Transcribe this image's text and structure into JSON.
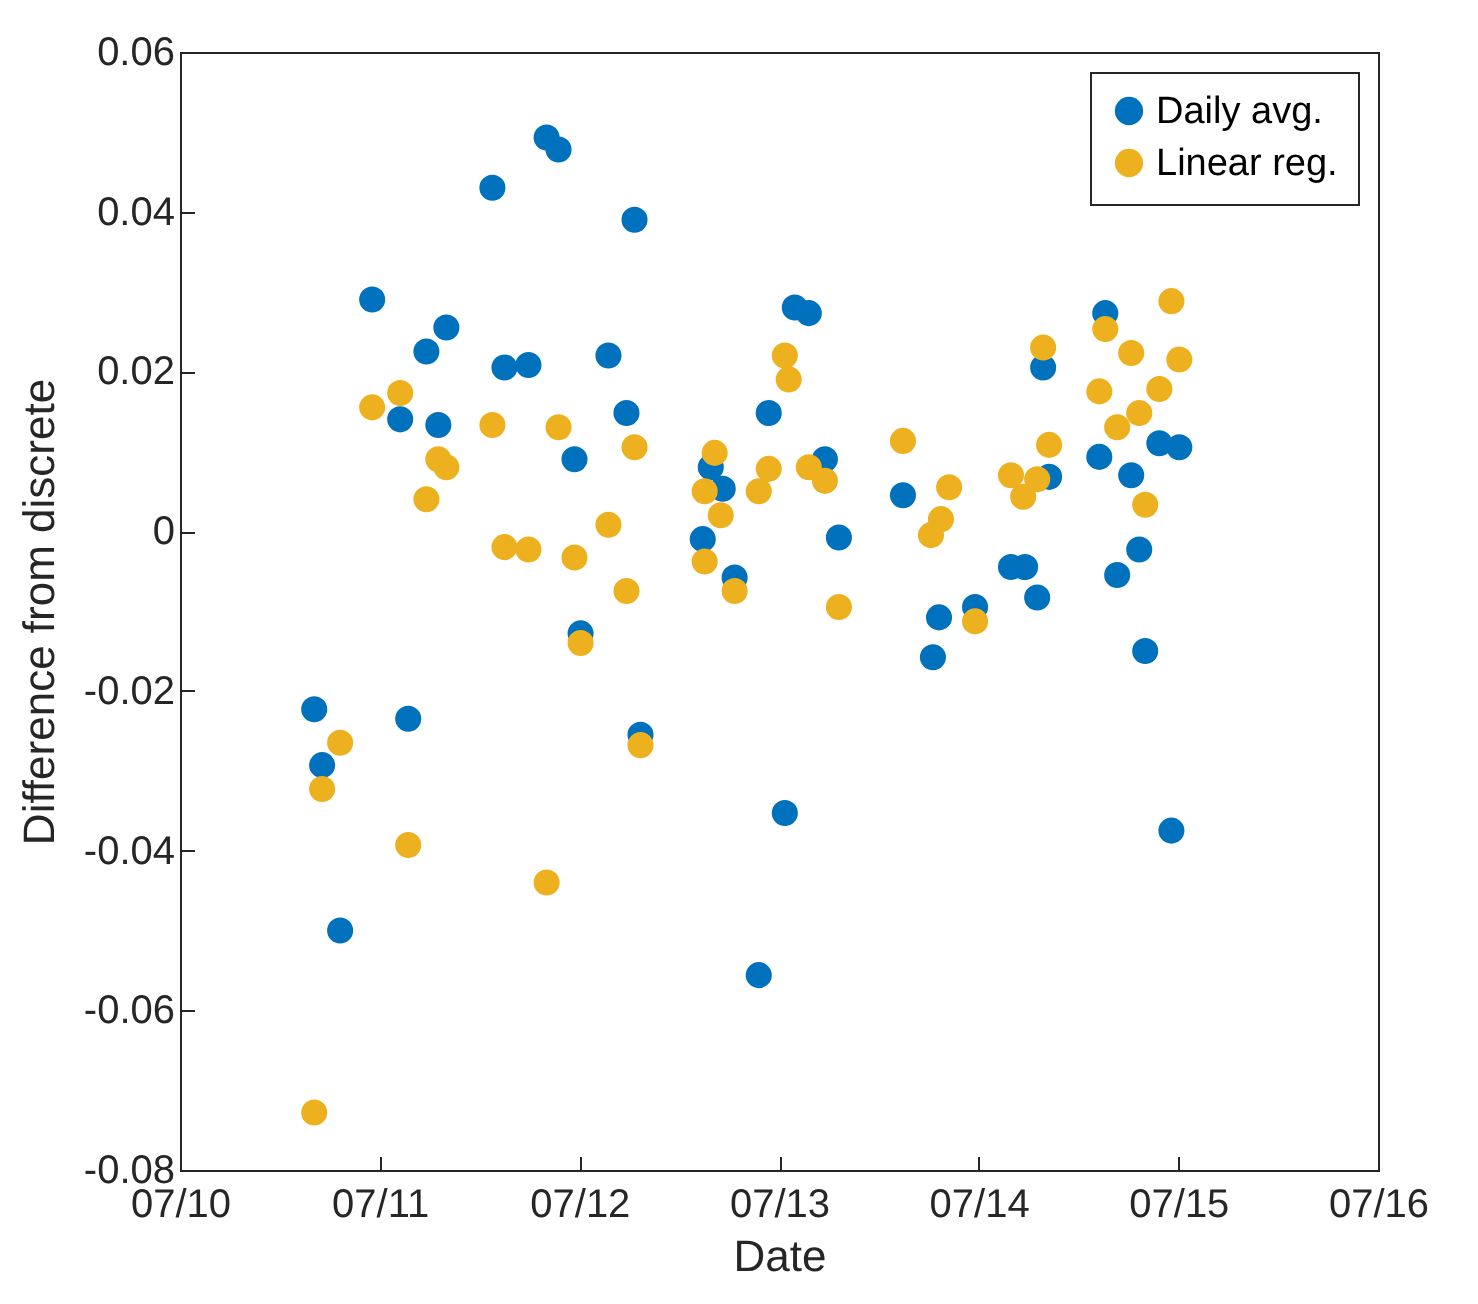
{
  "chart_data": {
    "type": "scatter",
    "xlabel": "Date",
    "ylabel": "Difference from discrete",
    "xlim": [
      "--07-10",
      "--07-16"
    ],
    "xticks": [
      {
        "value": "--07-10",
        "label": "07/10"
      },
      {
        "value": "--07-11",
        "label": "07/11"
      },
      {
        "value": "--07-12",
        "label": "07/12"
      },
      {
        "value": "--07-13",
        "label": "07/13"
      },
      {
        "value": "--07-14",
        "label": "07/14"
      },
      {
        "value": "--07-15",
        "label": "07/15"
      },
      {
        "value": "--07-16",
        "label": "07/16"
      }
    ],
    "ylim": [
      -0.08,
      0.06
    ],
    "yticks": [
      {
        "value": -0.08,
        "label": "-0.08"
      },
      {
        "value": -0.06,
        "label": "-0.06"
      },
      {
        "value": -0.04,
        "label": "-0.04"
      },
      {
        "value": -0.02,
        "label": "-0.02"
      },
      {
        "value": 0,
        "label": "0"
      },
      {
        "value": 0.02,
        "label": "0.02"
      },
      {
        "value": 0.04,
        "label": "0.04"
      },
      {
        "value": 0.06,
        "label": "0.06"
      }
    ],
    "legend": "top right",
    "grid": false,
    "marker": "circle",
    "series": [
      {
        "name": "Daily avg.",
        "color": "#0072bd",
        "x": [
          "--07-10T16:08",
          "--07-10T17:05",
          "--07-10T19:15",
          "--07-10T23:06",
          "--07-11T02:28",
          "--07-11T03:26",
          "--07-11T05:37",
          "--07-11T07:03",
          "--07-11T08:01",
          "--07-11T13:33",
          "--07-11T15:00",
          "--07-11T17:53",
          "--07-11T20:04",
          "--07-11T21:30",
          "--07-11T23:25",
          "--07-12T00:09",
          "--07-12T03:30",
          "--07-12T05:40",
          "--07-12T06:38",
          "--07-12T07:21",
          "--07-12T14:50",
          "--07-12T15:48",
          "--07-12T17:14",
          "--07-12T18:40",
          "--07-12T21:34",
          "--07-12T22:46",
          "--07-13T00:42",
          "--07-13T01:54",
          "--07-13T03:35",
          "--07-13T05:31",
          "--07-13T07:12",
          "--07-13T14:54",
          "--07-13T18:30",
          "--07-13T19:14",
          "--07-13T23:34",
          "--07-14T03:53",
          "--07-14T05:35",
          "--07-14T07:02",
          "--07-14T07:45",
          "--07-14T08:28",
          "--07-14T14:30",
          "--07-14T15:13",
          "--07-14T16:39",
          "--07-14T18:20",
          "--07-14T19:18",
          "--07-14T20:01",
          "--07-14T21:43",
          "--07-14T23:10",
          "--07-15T00:07"
        ],
        "values": [
          -0.0223,
          -0.0293,
          -0.05,
          0.029,
          0.014,
          -0.0235,
          0.0225,
          0.0133,
          0.0255,
          0.043,
          0.0205,
          0.0208,
          0.0493,
          0.0478,
          0.009,
          -0.0128,
          0.022,
          0.0148,
          0.039,
          -0.0255,
          -0.001,
          0.008,
          0.0053,
          -0.0058,
          -0.0556,
          0.0148,
          -0.0353,
          0.028,
          0.0273,
          0.009,
          -0.0008,
          0.0045,
          -0.0158,
          -0.0108,
          -0.0095,
          -0.0045,
          -0.0045,
          -0.0083,
          0.0205,
          0.0068,
          0.0093,
          0.0273,
          -0.0055,
          0.007,
          -0.0023,
          -0.015,
          0.011,
          -0.0375,
          0.0105
        ]
      },
      {
        "name": "Linear reg.",
        "color": "#edb120",
        "x": [
          "--07-10T16:08",
          "--07-10T17:05",
          "--07-10T19:15",
          "--07-10T23:06",
          "--07-11T02:28",
          "--07-11T03:26",
          "--07-11T05:37",
          "--07-11T07:03",
          "--07-11T08:01",
          "--07-11T13:33",
          "--07-11T15:00",
          "--07-11T17:53",
          "--07-11T20:04",
          "--07-11T21:30",
          "--07-11T23:25",
          "--07-12T00:09",
          "--07-12T03:30",
          "--07-12T05:40",
          "--07-12T06:38",
          "--07-12T07:21",
          "--07-12T15:04",
          "--07-12T15:04",
          "--07-12T16:16",
          "--07-12T17:00",
          "--07-12T18:40",
          "--07-12T21:34",
          "--07-12T22:46",
          "--07-13T00:42",
          "--07-13T01:10",
          "--07-13T03:35",
          "--07-13T05:31",
          "--07-13T07:12",
          "--07-13T14:54",
          "--07-13T18:16",
          "--07-13T19:28",
          "--07-13T20:27",
          "--07-13T23:34",
          "--07-14T03:53",
          "--07-14T05:21",
          "--07-14T07:02",
          "--07-14T07:45",
          "--07-14T08:28",
          "--07-14T14:30",
          "--07-14T15:13",
          "--07-14T16:39",
          "--07-14T18:20",
          "--07-14T19:18",
          "--07-14T20:01",
          "--07-14T21:43",
          "--07-14T23:10",
          "--07-15T00:07"
        ],
        "values": [
          -0.0728,
          -0.0323,
          -0.0265,
          0.0155,
          0.0173,
          -0.0393,
          0.004,
          0.009,
          0.008,
          0.0133,
          -0.002,
          -0.0023,
          -0.044,
          0.013,
          -0.0033,
          -0.014,
          0.0008,
          -0.0075,
          0.0105,
          -0.0268,
          -0.0038,
          0.005,
          0.0098,
          0.002,
          -0.0075,
          0.005,
          0.0078,
          0.022,
          0.019,
          0.008,
          0.0063,
          -0.0095,
          0.0113,
          -0.0005,
          0.0015,
          0.0055,
          -0.0113,
          0.007,
          0.0043,
          0.0065,
          0.023,
          0.0108,
          0.0175,
          0.0253,
          0.013,
          0.0223,
          0.0148,
          0.0033,
          0.0178,
          0.0288,
          0.0215
        ]
      }
    ]
  }
}
